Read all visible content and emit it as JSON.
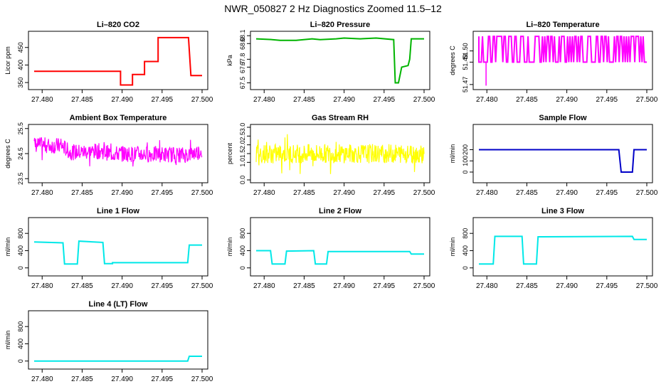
{
  "title": "NWR_050827  2 Hz Diagnostics Zoomed 11.5–12",
  "chart_data": [
    {
      "type": "line",
      "title": "Li–820 CO2",
      "xlabel": "",
      "ylabel": "Licor ppm",
      "xlim": [
        27.479,
        27.5
      ],
      "ylim": [
        338,
        488
      ],
      "xticks": [
        "27.480",
        "27.485",
        "27.490",
        "27.495",
        "27.500"
      ],
      "yticks": [
        {
          "v": 350,
          "label": "350"
        },
        {
          "v": 400,
          "label": "400"
        },
        {
          "v": 450,
          "label": "450"
        }
      ],
      "color": "#ff0000",
      "noise": 0,
      "series": [
        {
          "name": "CO2",
          "step": true,
          "x": [
            27.479,
            27.4898,
            27.4898,
            27.4913,
            27.4913,
            27.4928,
            27.4928,
            27.4945,
            27.4945,
            27.4983,
            27.4986,
            27.5
          ],
          "y": [
            382,
            382,
            343,
            343,
            373,
            373,
            410,
            410,
            478,
            478,
            370,
            370
          ]
        }
      ]
    },
    {
      "type": "line",
      "title": "Li–820 Pressure",
      "xlabel": "",
      "ylabel": "kPa",
      "xlim": [
        27.479,
        27.5
      ],
      "ylim": [
        67.45,
        68.12
      ],
      "xticks": [
        "27.480",
        "27.485",
        "27.490",
        "27.495",
        "27.500"
      ],
      "yticks": [
        {
          "v": 67.5,
          "label": "67.5"
        },
        {
          "v": 67.7,
          "label": "67.7"
        },
        {
          "v": 67.8,
          "label": "67.8"
        },
        {
          "v": 68.0,
          "label": "68.0"
        },
        {
          "v": 68.1,
          "label": "68.1"
        }
      ],
      "color": "#00b400",
      "noise": 0,
      "series": [
        {
          "name": "Pressure",
          "x": [
            27.479,
            27.481,
            27.482,
            27.484,
            27.486,
            27.487,
            27.489,
            27.49,
            27.492,
            27.494,
            27.4962,
            27.4964,
            27.4968,
            27.4972,
            27.498,
            27.4982,
            27.4984,
            27.5
          ],
          "y": [
            68.06,
            68.05,
            68.04,
            68.04,
            68.06,
            68.05,
            68.06,
            68.07,
            68.06,
            68.07,
            68.05,
            67.5,
            67.5,
            67.7,
            67.72,
            67.8,
            68.06,
            68.06
          ]
        }
      ]
    },
    {
      "type": "line",
      "title": "Li–820 Temperature",
      "xlabel": "",
      "ylabel": "degrees C",
      "xlim": [
        27.479,
        27.5
      ],
      "ylim": [
        51.468,
        51.515
      ],
      "xticks": [
        "27.480",
        "27.485",
        "27.490",
        "27.495",
        "27.500"
      ],
      "yticks": [
        {
          "v": 51.47,
          "label": "51.47"
        },
        {
          "v": 51.49,
          "label": "51.49"
        },
        {
          "v": 51.5,
          "label": "51.50"
        }
      ],
      "color": "#ff00ff",
      "noise": 0,
      "series": [
        {
          "name": "Temp",
          "toggle": true,
          "levels": [
            51.49,
            51.513
          ],
          "spike": {
            "x": 27.4799,
            "y": 51.469
          },
          "x": [
            27.479,
            27.5
          ],
          "y": [
            51.49,
            51.513
          ]
        }
      ]
    },
    {
      "type": "line",
      "title": "Ambient Box Temperature",
      "xlabel": "",
      "ylabel": "degrees C",
      "xlim": [
        27.479,
        27.5
      ],
      "ylim": [
        23.45,
        25.55
      ],
      "xticks": [
        "27.480",
        "27.485",
        "27.490",
        "27.495",
        "27.500"
      ],
      "yticks": [
        {
          "v": 23.5,
          "label": "23.5"
        },
        {
          "v": 24.5,
          "label": "24.5"
        },
        {
          "v": 25.5,
          "label": "25.5"
        }
      ],
      "color": "#ff00ff",
      "noise": 0.32,
      "series": [
        {
          "name": "BoxTemp",
          "x": [
            27.479,
            27.4825,
            27.4835,
            27.4875,
            27.4885,
            27.498,
            27.5
          ],
          "y": [
            24.85,
            24.8,
            24.55,
            24.6,
            24.5,
            24.45,
            24.6
          ]
        }
      ]
    },
    {
      "type": "line",
      "title": "Gas Stream RH",
      "xlabel": "",
      "ylabel": "percent",
      "xlim": [
        27.479,
        27.5
      ],
      "ylim": [
        0,
        3.0
      ],
      "xticks": [
        "27.480",
        "27.485",
        "27.490",
        "27.495",
        "27.500"
      ],
      "yticks": [
        {
          "v": 0.0,
          "label": "0.0"
        },
        {
          "v": 1.0,
          "label": "1.0"
        },
        {
          "v": 1.5,
          "label": "1.5"
        },
        {
          "v": 2.0,
          "label": "2.0"
        },
        {
          "v": 2.5,
          "label": "2.5"
        },
        {
          "v": 3.0,
          "label": "3.0"
        }
      ],
      "color": "#ffff00",
      "noise": 0.55,
      "series": [
        {
          "name": "RH",
          "x": [
            27.479,
            27.5
          ],
          "y": [
            1.5,
            1.5
          ]
        }
      ]
    },
    {
      "type": "line",
      "title": "Sample Flow",
      "xlabel": "",
      "ylabel": "ml/min",
      "xlim": [
        27.479,
        27.5
      ],
      "ylim": [
        -70,
        400
      ],
      "xticks": [
        "27.480",
        "27.485",
        "27.490",
        "27.495",
        "27.500"
      ],
      "yticks": [
        {
          "v": 0,
          "label": "0"
        },
        {
          "v": 100,
          "label": "100"
        },
        {
          "v": 200,
          "label": "200"
        }
      ],
      "color": "#0000c8",
      "noise": 0,
      "series": [
        {
          "name": "SampleFlow",
          "step": true,
          "x": [
            27.479,
            27.4965,
            27.4968,
            27.4982,
            27.4984,
            27.5
          ],
          "y": [
            200,
            200,
            0,
            0,
            200,
            200
          ]
        }
      ]
    },
    {
      "type": "line",
      "title": "Line 1 Flow",
      "xlabel": "",
      "ylabel": "ml/min",
      "xlim": [
        27.479,
        27.5
      ],
      "ylim": [
        -120,
        1100
      ],
      "xticks": [
        "27.480",
        "27.485",
        "27.490",
        "27.495",
        "27.500"
      ],
      "yticks": [
        {
          "v": 0,
          "label": "0"
        },
        {
          "v": 400,
          "label": "400"
        },
        {
          "v": 800,
          "label": "800"
        }
      ],
      "color": "#00e8e8",
      "noise": 0,
      "series": [
        {
          "name": "Line1",
          "step": true,
          "x": [
            27.479,
            27.4826,
            27.4828,
            27.4844,
            27.4846,
            27.4876,
            27.4878,
            27.4888,
            27.4888,
            27.4982,
            27.4984,
            27.5
          ],
          "y": [
            600,
            580,
            90,
            90,
            620,
            590,
            100,
            100,
            120,
            120,
            530,
            530
          ]
        }
      ]
    },
    {
      "type": "line",
      "title": "Line 2 Flow",
      "xlabel": "",
      "ylabel": "ml/min",
      "xlim": [
        27.479,
        27.5
      ],
      "ylim": [
        -120,
        1100
      ],
      "xticks": [
        "27.480",
        "27.485",
        "27.490",
        "27.495",
        "27.500"
      ],
      "yticks": [
        {
          "v": 0,
          "label": "0"
        },
        {
          "v": 400,
          "label": "400"
        },
        {
          "v": 800,
          "label": "800"
        }
      ],
      "color": "#00e8e8",
      "noise": 0,
      "series": [
        {
          "name": "Line2",
          "step": true,
          "x": [
            27.479,
            27.4808,
            27.481,
            27.4826,
            27.4828,
            27.4862,
            27.4864,
            27.4878,
            27.488,
            27.4982,
            27.4984,
            27.5
          ],
          "y": [
            400,
            400,
            90,
            90,
            390,
            400,
            90,
            90,
            380,
            380,
            320,
            320
          ]
        }
      ]
    },
    {
      "type": "line",
      "title": "Line 3 Flow",
      "xlabel": "",
      "ylabel": "ml/min",
      "xlim": [
        27.479,
        27.5
      ],
      "ylim": [
        -120,
        1100
      ],
      "xticks": [
        "27.480",
        "27.485",
        "27.490",
        "27.495",
        "27.500"
      ],
      "yticks": [
        {
          "v": 0,
          "label": "0"
        },
        {
          "v": 400,
          "label": "400"
        },
        {
          "v": 800,
          "label": "800"
        }
      ],
      "color": "#00e8e8",
      "noise": 0,
      "series": [
        {
          "name": "Line3",
          "step": true,
          "x": [
            27.479,
            27.4808,
            27.481,
            27.4844,
            27.4846,
            27.4862,
            27.4864,
            27.4982,
            27.4984,
            27.5
          ],
          "y": [
            90,
            90,
            730,
            730,
            90,
            90,
            720,
            730,
            660,
            660
          ]
        }
      ]
    },
    {
      "type": "line",
      "title": "Line 4 (LT) Flow",
      "xlabel": "",
      "ylabel": "ml/min",
      "xlim": [
        27.479,
        27.5
      ],
      "ylim": [
        -120,
        1100
      ],
      "xticks": [
        "27.480",
        "27.485",
        "27.490",
        "27.495",
        "27.500"
      ],
      "yticks": [
        {
          "v": 0,
          "label": "0"
        },
        {
          "v": 400,
          "label": "400"
        },
        {
          "v": 800,
          "label": "800"
        }
      ],
      "color": "#00e8e8",
      "noise": 0,
      "series": [
        {
          "name": "Line4",
          "step": true,
          "x": [
            27.479,
            27.4982,
            27.4984,
            27.5
          ],
          "y": [
            0,
            0,
            110,
            110
          ]
        }
      ]
    }
  ]
}
